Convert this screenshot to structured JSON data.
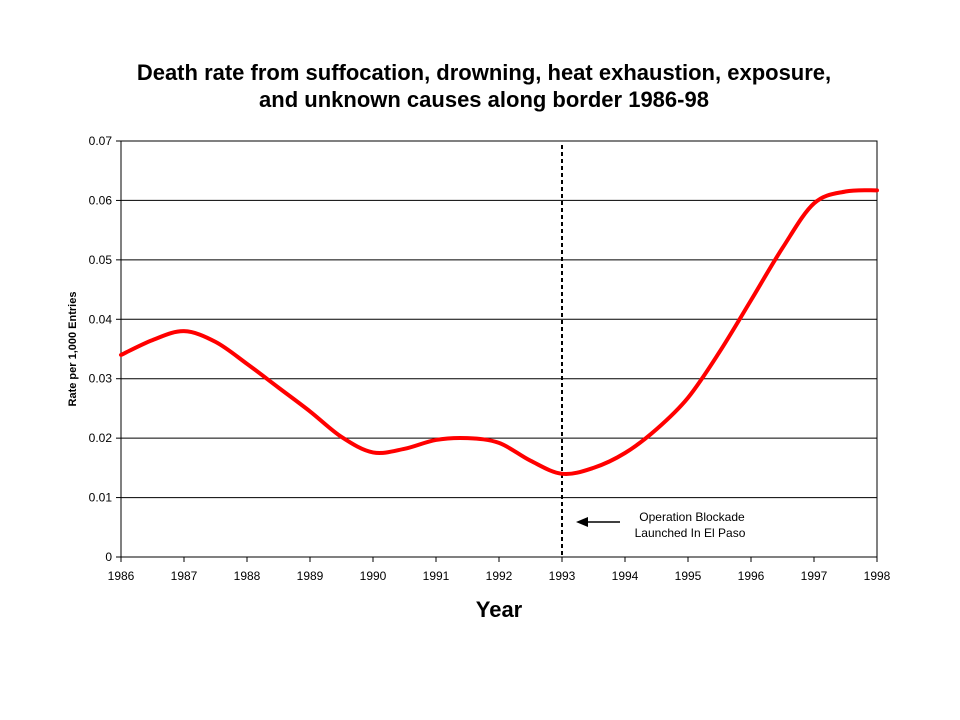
{
  "chart_data": {
    "type": "line",
    "title_lines": [
      "Death rate from suffocation, drowning, heat exhaustion, exposure,",
      "and unknown causes along border 1986-98"
    ],
    "xlabel": "Year",
    "ylabel": "Rate per 1,000 Entries",
    "xlim": [
      1986,
      1998
    ],
    "ylim": [
      0,
      0.07
    ],
    "x_ticks": [
      "1986",
      "1987",
      "1988",
      "1989",
      "1990",
      "1991",
      "1992",
      "1993",
      "1994",
      "1995",
      "1996",
      "1997",
      "1998"
    ],
    "y_ticks": [
      "0",
      "0.01",
      "0.02",
      "0.03",
      "0.04",
      "0.05",
      "0.06",
      "0.07"
    ],
    "grid": "horizontal",
    "legend": "none",
    "series": [
      {
        "color": "#ff0000",
        "x": [
          1986,
          1986.5,
          1987,
          1987.5,
          1988,
          1988.5,
          1989,
          1989.5,
          1990,
          1990.5,
          1991,
          1991.5,
          1992,
          1992.5,
          1993,
          1993.5,
          1994,
          1994.5,
          1995,
          1995.5,
          1996,
          1996.5,
          1997,
          1997.5,
          1998
        ],
        "y": [
          0.034,
          0.0365,
          0.038,
          0.0362,
          0.0325,
          0.0285,
          0.0245,
          0.0202,
          0.0176,
          0.0182,
          0.0197,
          0.02,
          0.0192,
          0.0162,
          0.014,
          0.015,
          0.0175,
          0.0215,
          0.0268,
          0.0345,
          0.0432,
          0.052,
          0.0595,
          0.0615,
          0.0617
        ]
      }
    ],
    "reference_line": {
      "x": 1993,
      "style": "dashed",
      "color": "#000000"
    },
    "annotation": {
      "lines": [
        "Operation Blockade",
        "Launched In El Paso"
      ],
      "points_to_x": 1993
    }
  }
}
